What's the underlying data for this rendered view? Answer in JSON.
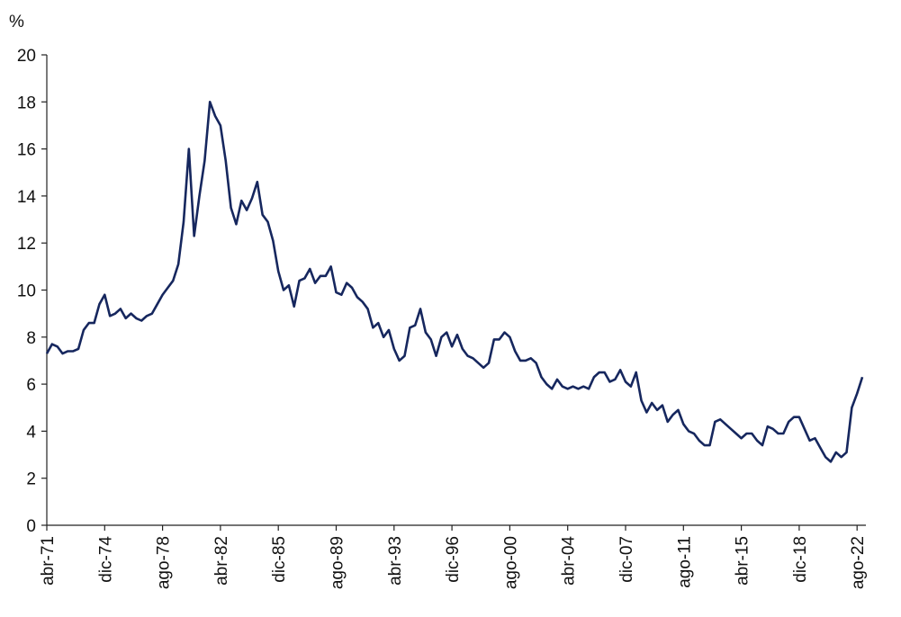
{
  "chart_data": {
    "type": "line",
    "y_label": "%",
    "color": "#16275e",
    "ylim": [
      0,
      20
    ],
    "yticks": [
      0,
      2,
      4,
      6,
      8,
      10,
      12,
      14,
      16,
      18,
      20
    ],
    "categories": [
      "abr-71",
      null,
      null,
      null,
      null,
      null,
      null,
      null,
      null,
      null,
      null,
      "dic-74",
      null,
      null,
      null,
      null,
      null,
      null,
      null,
      null,
      null,
      null,
      "ago-78",
      null,
      null,
      null,
      null,
      null,
      null,
      null,
      null,
      null,
      null,
      "abr-82",
      null,
      null,
      null,
      null,
      null,
      null,
      null,
      null,
      null,
      null,
      "dic-85",
      null,
      null,
      null,
      null,
      null,
      null,
      null,
      null,
      null,
      null,
      "ago-89",
      null,
      null,
      null,
      null,
      null,
      null,
      null,
      null,
      null,
      null,
      "abr-93",
      null,
      null,
      null,
      null,
      null,
      null,
      null,
      null,
      null,
      null,
      "dic-96",
      null,
      null,
      null,
      null,
      null,
      null,
      null,
      null,
      null,
      null,
      "ago-00",
      null,
      null,
      null,
      null,
      null,
      null,
      null,
      null,
      null,
      null,
      "abr-04",
      null,
      null,
      null,
      null,
      null,
      null,
      null,
      null,
      null,
      null,
      "dic-07",
      null,
      null,
      null,
      null,
      null,
      null,
      null,
      null,
      null,
      null,
      "ago-11",
      null,
      null,
      null,
      null,
      null,
      null,
      null,
      null,
      null,
      null,
      "abr-15",
      null,
      null,
      null,
      null,
      null,
      null,
      null,
      null,
      null,
      null,
      "dic-18",
      null,
      null,
      null,
      null,
      null,
      null,
      null,
      null,
      null,
      null,
      "ago-22",
      null
    ],
    "values": [
      7.3,
      7.7,
      7.6,
      7.3,
      7.4,
      7.4,
      7.5,
      8.3,
      8.6,
      8.6,
      9.4,
      9.8,
      8.9,
      9.0,
      9.2,
      8.8,
      9.0,
      8.8,
      8.7,
      8.9,
      9.0,
      9.4,
      9.8,
      10.1,
      10.4,
      11.1,
      12.9,
      16.0,
      12.3,
      14.0,
      15.5,
      18.0,
      17.4,
      17.0,
      15.5,
      13.5,
      12.8,
      13.8,
      13.4,
      13.9,
      14.6,
      13.2,
      12.9,
      12.1,
      10.8,
      10.0,
      10.2,
      9.3,
      10.4,
      10.5,
      10.9,
      10.3,
      10.6,
      10.6,
      11.0,
      9.9,
      9.8,
      10.3,
      10.1,
      9.7,
      9.5,
      9.2,
      8.4,
      8.6,
      8.0,
      8.3,
      7.5,
      7.0,
      7.2,
      8.4,
      8.5,
      9.2,
      8.2,
      7.9,
      7.2,
      8.0,
      8.2,
      7.6,
      8.1,
      7.5,
      7.2,
      7.1,
      6.9,
      6.7,
      6.9,
      7.9,
      7.9,
      8.2,
      8.0,
      7.4,
      7.0,
      7.0,
      7.1,
      6.9,
      6.3,
      6.0,
      5.8,
      6.2,
      5.9,
      5.8,
      5.9,
      5.8,
      5.9,
      5.8,
      6.3,
      6.5,
      6.5,
      6.1,
      6.2,
      6.6,
      6.1,
      5.9,
      6.5,
      5.3,
      4.8,
      5.2,
      4.9,
      5.1,
      4.4,
      4.7,
      4.9,
      4.3,
      4.0,
      3.9,
      3.6,
      3.4,
      3.4,
      4.4,
      4.5,
      4.3,
      4.1,
      3.9,
      3.7,
      3.9,
      3.9,
      3.6,
      3.4,
      4.2,
      4.1,
      3.9,
      3.9,
      4.4,
      4.6,
      4.6,
      4.1,
      3.6,
      3.7,
      3.3,
      2.9,
      2.7,
      3.1,
      2.9,
      3.1,
      5.0,
      5.6,
      6.3
    ]
  }
}
